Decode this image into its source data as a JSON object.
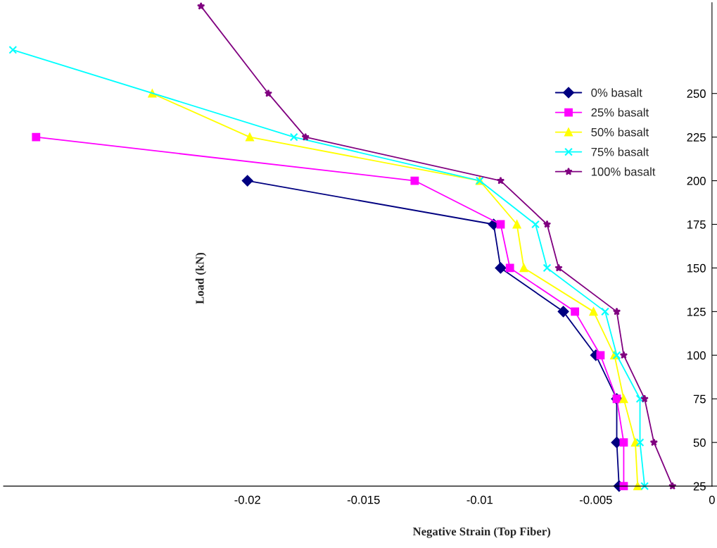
{
  "chart_data": {
    "type": "line",
    "xlabel": "Negative Strain (Top Fiber)",
    "ylabel": "Load (kN)",
    "xlim": [
      -0.0305,
      0
    ],
    "ylim": [
      25,
      302
    ],
    "xticks": [
      -0.02,
      -0.015,
      -0.01,
      -0.005,
      0
    ],
    "yticks": [
      25,
      50,
      75,
      100,
      125,
      150,
      175,
      200,
      225,
      250
    ],
    "grid": false,
    "legend": "top right",
    "series": [
      {
        "name": "0% basalt",
        "color": "#000080",
        "marker": "diamond",
        "x": [
          -0.004,
          -0.0041,
          -0.0041,
          -0.005,
          -0.0064,
          -0.0091,
          -0.0094,
          -0.02
        ],
        "values": [
          25,
          50,
          75,
          100,
          125,
          150,
          175,
          200
        ]
      },
      {
        "name": "25% basalt",
        "color": "#ff00ff",
        "marker": "square",
        "x": [
          -0.0038,
          -0.0038,
          -0.0041,
          -0.0048,
          -0.0059,
          -0.0087,
          -0.0091,
          -0.0128,
          -0.0291
        ],
        "values": [
          25,
          50,
          75,
          100,
          125,
          150,
          175,
          200,
          225
        ]
      },
      {
        "name": "50% basalt",
        "color": "#ffff00",
        "marker": "triangle",
        "x": [
          -0.0032,
          -0.0033,
          -0.0038,
          -0.0042,
          -0.0051,
          -0.0081,
          -0.0084,
          -0.01,
          -0.0199,
          -0.0241
        ],
        "values": [
          25,
          50,
          75,
          100,
          125,
          150,
          175,
          200,
          225,
          250
        ]
      },
      {
        "name": "75% basalt",
        "color": "#00ffff",
        "marker": "cross",
        "x": [
          -0.0029,
          -0.0031,
          -0.0031,
          -0.0041,
          -0.0046,
          -0.0071,
          -0.0076,
          -0.01,
          -0.018,
          -0.0301
        ],
        "values": [
          25,
          50,
          75,
          100,
          125,
          150,
          175,
          200,
          225,
          275
        ]
      },
      {
        "name": "100% basalt",
        "color": "#800080",
        "marker": "star",
        "x": [
          -0.0017,
          -0.0025,
          -0.0029,
          -0.0038,
          -0.0041,
          -0.0066,
          -0.0071,
          -0.0091,
          -0.0175,
          -0.0191,
          -0.022
        ],
        "values": [
          25,
          50,
          75,
          100,
          125,
          150,
          175,
          200,
          225,
          250,
          300
        ]
      }
    ]
  }
}
